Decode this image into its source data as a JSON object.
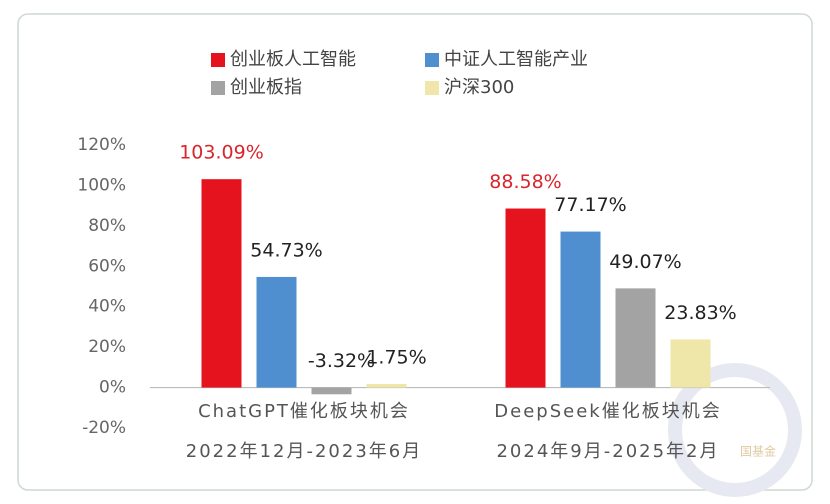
{
  "chart_data": {
    "type": "bar",
    "categories": [
      [
        "ChatGPT催化板块机会",
        "2022年12月-2023年6月"
      ],
      [
        "DeepSeek催化板块机会",
        "2024年9月-2025年2月"
      ]
    ],
    "series": [
      {
        "name": "创业板人工智能",
        "color": "#e5131d",
        "label_color": "#d9262c",
        "values": [
          103.09,
          88.58
        ],
        "value_labels": [
          "103.09%",
          "88.58%"
        ]
      },
      {
        "name": "中证人工智能产业",
        "color": "#4f8fcf",
        "label_color": "#222222",
        "values": [
          54.73,
          77.17
        ],
        "value_labels": [
          "54.73%",
          "77.17%"
        ]
      },
      {
        "name": "创业板指",
        "color": "#a3a3a3",
        "label_color": "#222222",
        "values": [
          -3.32,
          49.07
        ],
        "value_labels": [
          "-3.32%",
          "49.07%"
        ]
      },
      {
        "name": "沪深300",
        "color": "#efe6a9",
        "label_color": "#222222",
        "values": [
          1.75,
          23.83
        ],
        "value_labels": [
          "1.75%",
          "23.83%"
        ]
      }
    ],
    "ylim": [
      -20,
      120
    ],
    "yticks": [
      {
        "value": -20,
        "label": "-20%"
      },
      {
        "value": 0,
        "label": "0%"
      },
      {
        "value": 20,
        "label": "20%"
      },
      {
        "value": 40,
        "label": "40%"
      },
      {
        "value": 60,
        "label": "60%"
      },
      {
        "value": 80,
        "label": "80%"
      },
      {
        "value": 100,
        "label": "100%"
      },
      {
        "value": 120,
        "label": "120%"
      }
    ],
    "grid": false,
    "watermark": "国基金"
  }
}
